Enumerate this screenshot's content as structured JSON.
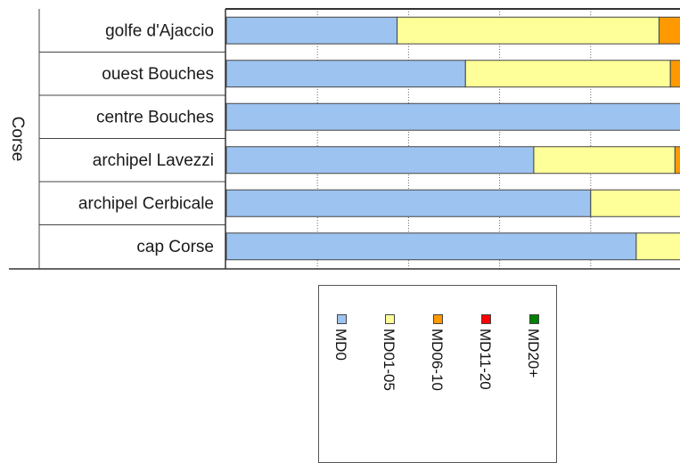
{
  "chart_data": {
    "type": "bar",
    "orientation": "horizontal",
    "stacked": true,
    "group_label": "Corse",
    "categories": [
      "golfe d'Ajaccio",
      "ouest Bouches",
      "centre Bouches",
      "archipel Lavezzi",
      "archipel Cerbicale",
      "cap Corse"
    ],
    "series": [
      {
        "name": "MD0",
        "color": "#9dc3f0",
        "values": [
          37.5,
          52.5,
          100,
          67.5,
          80,
          90
        ]
      },
      {
        "name": "MD01-05",
        "color": "#ffff99",
        "values": [
          57.5,
          45,
          0,
          31,
          20,
          10
        ]
      },
      {
        "name": "MD06-10",
        "color": "#ff9900",
        "values": [
          5,
          2.5,
          0,
          1.5,
          0,
          0
        ]
      },
      {
        "name": "MD11-20",
        "color": "#ff0000",
        "values": [
          0,
          0,
          0,
          0,
          0,
          0
        ]
      },
      {
        "name": "MD20+",
        "color": "#008000",
        "values": [
          0,
          0,
          0,
          0,
          0,
          0
        ]
      }
    ],
    "xlim": [
      0,
      100
    ],
    "grid": true,
    "legend_position": "bottom"
  }
}
